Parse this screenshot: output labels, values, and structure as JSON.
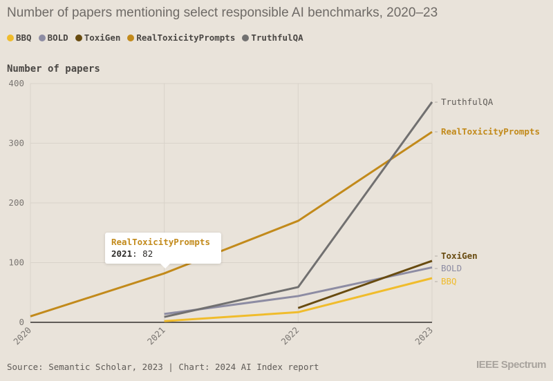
{
  "chart_data": {
    "type": "line",
    "title": "Number of papers mentioning select responsible AI benchmarks, 2020–23",
    "xlabel": "",
    "ylabel": "Number of papers",
    "x": [
      "2020",
      "2021",
      "2022",
      "2023"
    ],
    "yticks": [
      "0",
      "100",
      "200",
      "300",
      "400"
    ],
    "ylim": [
      0,
      400
    ],
    "grid": true,
    "legend_position": "top-left",
    "series": [
      {
        "name": "BBQ",
        "color": "#f0bc2c",
        "values": [
          null,
          2,
          17,
          74
        ]
      },
      {
        "name": "BOLD",
        "color": "#8d8ca3",
        "values": [
          null,
          14,
          44,
          92
        ]
      },
      {
        "name": "ToxiGen",
        "color": "#684b10",
        "values": [
          null,
          null,
          24,
          103
        ]
      },
      {
        "name": "RealToxicityPrompts",
        "color": "#c28a1b",
        "values": [
          10,
          82,
          170,
          319
        ]
      },
      {
        "name": "TruthfulQA",
        "color": "#717070",
        "values": [
          null,
          9,
          59,
          369
        ]
      }
    ],
    "end_labels": [
      "TruthfulQA",
      "RealToxicityPrompts",
      "ToxiGen",
      "BOLD",
      "BBQ"
    ],
    "tooltip": {
      "series": "RealToxicityPrompts",
      "x": "2021",
      "value": "82"
    }
  },
  "footer": {
    "source": "Source: Semantic Scholar, 2023 | Chart: 2024 AI Index report",
    "brand": "IEEE Spectrum"
  }
}
